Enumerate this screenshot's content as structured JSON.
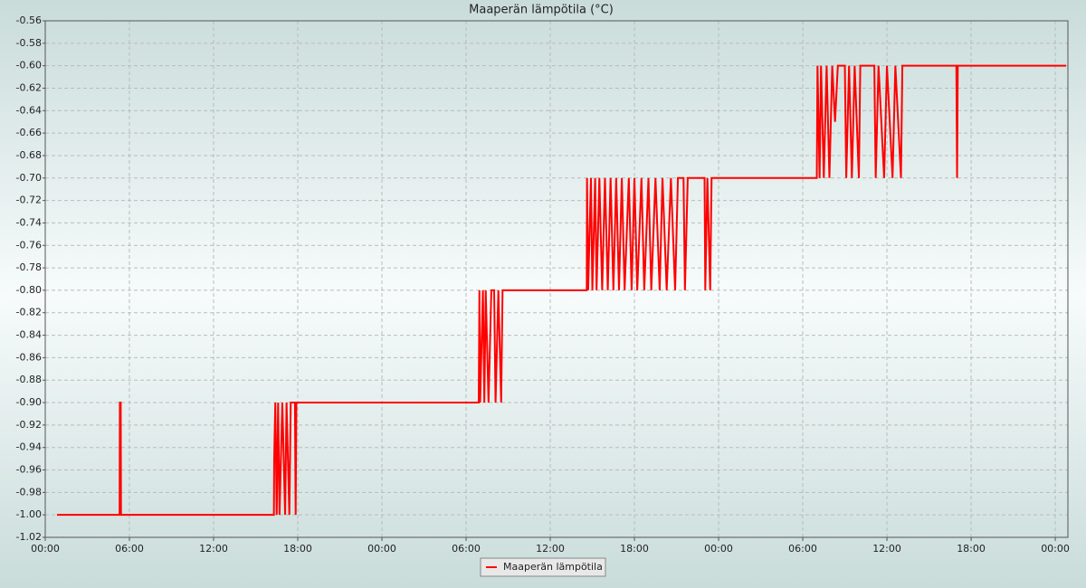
{
  "chart_data": {
    "type": "line",
    "title": "Maaperän lämpötila (°C)",
    "series": [
      {
        "name": "Maaperän lämpötila",
        "color": "#ff0000",
        "x": [
          0.84,
          5.3,
          5.32,
          5.38,
          5.4,
          16.3,
          16.32,
          16.4,
          16.5,
          16.6,
          16.7,
          16.8,
          16.9,
          17.1,
          17.2,
          17.4,
          17.5,
          17.8,
          17.85,
          17.9,
          30.9,
          30.95,
          31.0,
          31.2,
          31.3,
          31.4,
          31.6,
          31.7,
          31.8,
          32.0,
          32.1,
          32.3,
          32.5,
          32.6,
          38.6,
          38.62,
          38.7,
          38.9,
          39.0,
          39.2,
          39.3,
          39.5,
          39.7,
          39.9,
          40.1,
          40.3,
          40.5,
          40.7,
          40.9,
          41.1,
          41.3,
          41.6,
          41.8,
          42.0,
          42.2,
          42.5,
          42.7,
          43.0,
          43.2,
          43.5,
          43.8,
          44.0,
          44.3,
          44.6,
          44.9,
          45.1,
          45.5,
          45.6,
          45.8,
          47.0,
          47.05,
          47.2,
          47.4,
          47.5,
          55.0,
          55.05,
          55.2,
          55.3,
          55.5,
          55.7,
          55.9,
          56.1,
          56.3,
          56.5,
          57.0,
          57.1,
          57.3,
          57.5,
          57.7,
          58.0,
          58.1,
          59.1,
          59.2,
          59.4,
          59.8,
          60.0,
          60.4,
          60.6,
          61.0,
          61.1,
          64.95,
          65.0,
          65.05,
          72.77
        ],
        "values": [
          -1,
          -1,
          -0.9,
          -0.9,
          -1,
          -1,
          -0.95,
          -0.9,
          -1,
          -0.9,
          -1,
          -0.95,
          -0.9,
          -1,
          -0.9,
          -1,
          -0.9,
          -0.9,
          -1,
          -0.9,
          -0.9,
          -0.8,
          -0.9,
          -0.8,
          -0.9,
          -0.8,
          -0.9,
          -0.85,
          -0.8,
          -0.8,
          -0.9,
          -0.8,
          -0.9,
          -0.8,
          -0.8,
          -0.7,
          -0.8,
          -0.7,
          -0.8,
          -0.7,
          -0.8,
          -0.7,
          -0.8,
          -0.7,
          -0.8,
          -0.7,
          -0.8,
          -0.7,
          -0.8,
          -0.7,
          -0.8,
          -0.7,
          -0.8,
          -0.7,
          -0.8,
          -0.7,
          -0.8,
          -0.7,
          -0.8,
          -0.7,
          -0.8,
          -0.7,
          -0.8,
          -0.7,
          -0.8,
          -0.7,
          -0.7,
          -0.8,
          -0.7,
          -0.7,
          -0.8,
          -0.7,
          -0.8,
          -0.7,
          -0.7,
          -0.6,
          -0.7,
          -0.6,
          -0.7,
          -0.6,
          -0.7,
          -0.6,
          -0.65,
          -0.6,
          -0.6,
          -0.7,
          -0.6,
          -0.7,
          -0.6,
          -0.7,
          -0.6,
          -0.6,
          -0.7,
          -0.6,
          -0.7,
          -0.6,
          -0.7,
          -0.6,
          -0.7,
          -0.6,
          -0.6,
          -0.7,
          -0.6,
          -0.6
        ]
      }
    ],
    "xlim": [
      0,
      72.9
    ],
    "xticks": [
      {
        "value": 0,
        "label": "00:00"
      },
      {
        "value": 6,
        "label": "06:00"
      },
      {
        "value": 12,
        "label": "12:00"
      },
      {
        "value": 18,
        "label": "18:00"
      },
      {
        "value": 24,
        "label": "00:00"
      },
      {
        "value": 30,
        "label": "06:00"
      },
      {
        "value": 36,
        "label": "12:00"
      },
      {
        "value": 42,
        "label": "18:00"
      },
      {
        "value": 48,
        "label": "00:00"
      },
      {
        "value": 54,
        "label": "06:00"
      },
      {
        "value": 60,
        "label": "12:00"
      },
      {
        "value": 66,
        "label": "18:00"
      },
      {
        "value": 72,
        "label": "00:00"
      }
    ],
    "ylim": [
      -1.02,
      -0.56
    ],
    "yticks": [
      {
        "value": -1.02,
        "label": "-1.02"
      },
      {
        "value": -1,
        "label": "-1.00"
      },
      -0.98,
      -0.96,
      -0.94,
      -0.92,
      {
        "value": -0.9,
        "label": "-0.90"
      },
      -0.88,
      -0.86,
      -0.84,
      -0.82,
      {
        "value": -0.8,
        "label": "-0.80"
      },
      -0.78,
      -0.76,
      -0.74,
      -0.72,
      {
        "value": -0.7,
        "label": "-0.70"
      },
      -0.68,
      -0.66,
      -0.64,
      -0.62,
      {
        "value": -0.6,
        "label": "-0.60"
      },
      -0.58,
      -0.56
    ],
    "grid": true,
    "legend": "bottom"
  }
}
